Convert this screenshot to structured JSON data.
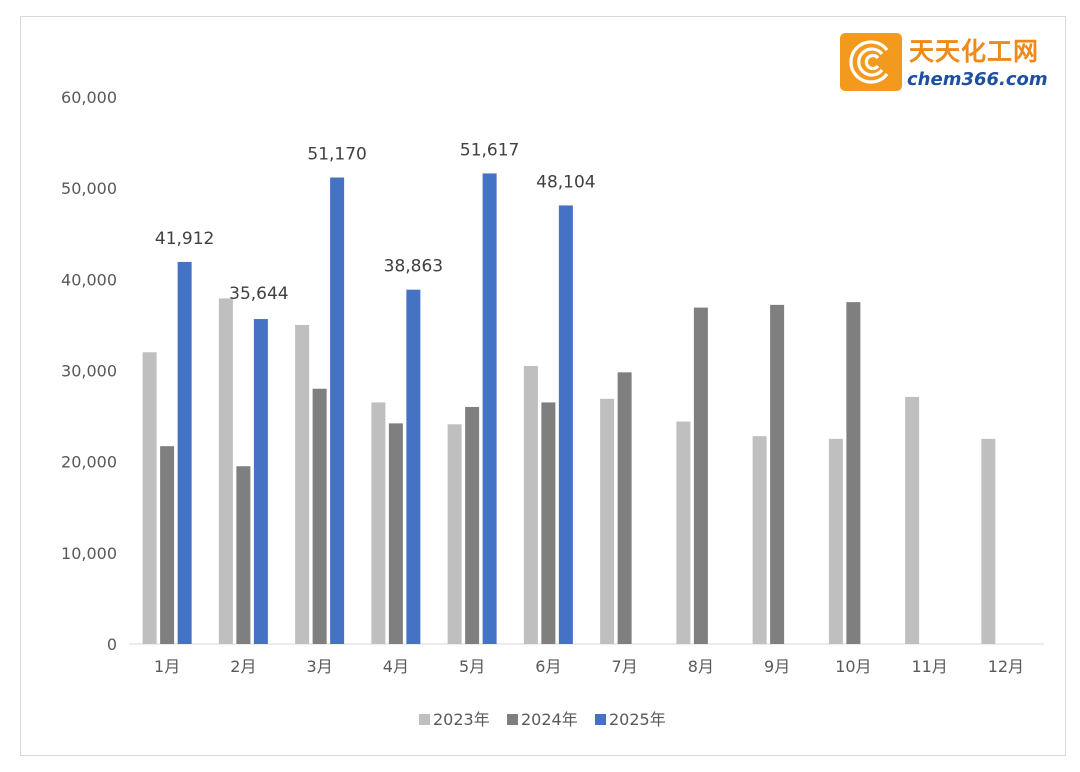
{
  "chart_data": {
    "type": "bar",
    "categories": [
      "1月",
      "2月",
      "3月",
      "4月",
      "5月",
      "6月",
      "7月",
      "8月",
      "9月",
      "10月",
      "11月",
      "12月"
    ],
    "series": [
      {
        "name": "2023年",
        "color": "#bfbfbf",
        "values": [
          32000,
          37900,
          35000,
          26500,
          24100,
          30500,
          26900,
          24400,
          22800,
          22500,
          27100,
          22500
        ]
      },
      {
        "name": "2024年",
        "color": "#7f7f7f",
        "values": [
          21700,
          19500,
          28000,
          24200,
          26000,
          26500,
          29800,
          36900,
          37200,
          37500,
          null,
          null
        ]
      },
      {
        "name": "2025年",
        "color": "#4472c4",
        "values": [
          41912,
          35644,
          51170,
          38863,
          51617,
          48104,
          null,
          null,
          null,
          null,
          null,
          null
        ]
      }
    ],
    "data_labels": [
      "41,912",
      "35,644",
      "51,170",
      "38,863",
      "51,617",
      "48,104"
    ],
    "ylim": [
      0,
      60000
    ],
    "yticks": [
      0,
      10000,
      20000,
      30000,
      40000,
      50000,
      60000
    ],
    "ytick_labels": [
      "0",
      "10,000",
      "20,000",
      "30,000",
      "40,000",
      "50,000",
      "60,000"
    ],
    "grid": false,
    "legend_position": "bottom",
    "title": "",
    "xlabel": "",
    "ylabel": ""
  },
  "logo": {
    "text_cn": "天天化工网",
    "text_en": "chem366.com",
    "icon": "concentric-arc-logo-icon"
  }
}
